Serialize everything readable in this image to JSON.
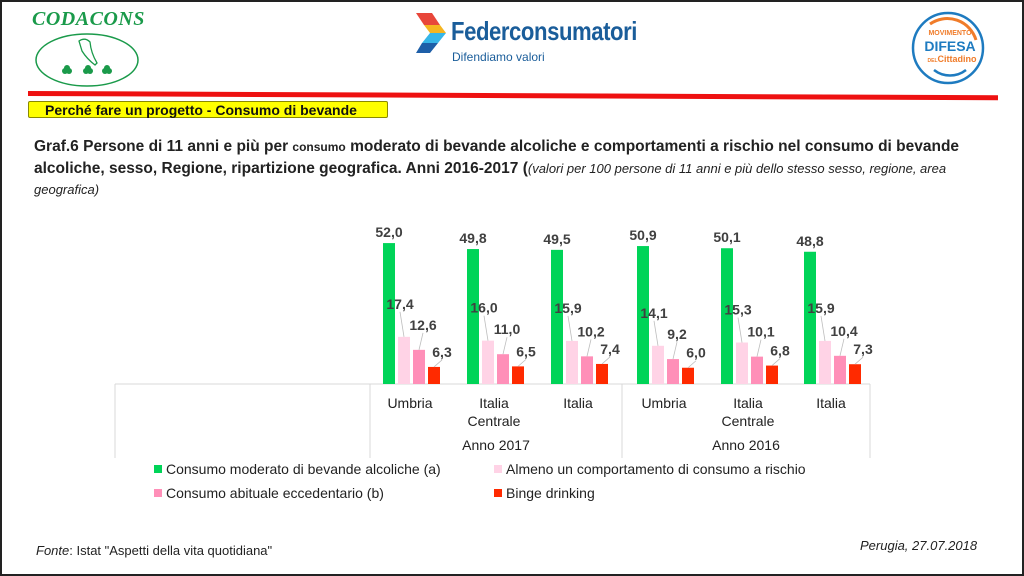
{
  "header": {
    "logo_left": {
      "name": "CODACONS"
    },
    "logo_center": {
      "name": "Federconsumatori",
      "tagline": "Difendiamo valori"
    },
    "logo_right": {
      "line1": "MOVIMENTO",
      "line2": "DIFESA",
      "line3_small": "DEL",
      "line3": "Cittadino"
    },
    "section_label": "Perché fare un progetto  - Consumo di bevande"
  },
  "title": {
    "part1": "Graf.6 Persone di 11 anni e più per ",
    "part2_small": "consumo",
    "part3": " moderato di bevande alcoliche  e comportamenti a rischio nel consumo di bevande alcoliche, sesso, Regione, ripartizione geografica. Anni 2016-2017 (",
    "part4_italic": "(valori per 100 persone di 11 anni e più dello stesso sesso, regione, area geografica)"
  },
  "chart_data": {
    "type": "bar",
    "title": "Graf.6 Persone di 11 anni e più per consumo moderato di bevande alcoliche e comportamenti a rischio nel consumo di bevande alcoliche, sesso, Regione, ripartizione geografica. Anni 2016-2017",
    "categories": [
      "Umbria",
      "Italia Centrale",
      "Italia",
      "Umbria",
      "Italia Centrale",
      "Italia"
    ],
    "category_lines": [
      [
        "Umbria"
      ],
      [
        "Italia",
        "Centrale"
      ],
      [
        "Italia"
      ],
      [
        "Umbria"
      ],
      [
        "Italia",
        "Centrale"
      ],
      [
        "Italia"
      ]
    ],
    "groups": [
      {
        "label": "Anno 2017",
        "categories": [
          0,
          1,
          2
        ]
      },
      {
        "label": "Anno 2016",
        "categories": [
          3,
          4,
          5
        ]
      }
    ],
    "series": [
      {
        "name": "Consumo moderato di bevande alcoliche (a)",
        "color": "#00d458",
        "values": [
          52.0,
          49.8,
          49.5,
          50.9,
          50.1,
          48.8
        ],
        "labels": [
          "52,0",
          "49,8",
          "49,5",
          "50,9",
          "50,1",
          "48,8"
        ]
      },
      {
        "name": "Almeno un comportamento  di consumo a rischio",
        "color": "#ffd3e6",
        "values": [
          17.4,
          16.0,
          15.9,
          14.1,
          15.3,
          15.9
        ],
        "labels": [
          "17,4",
          "16,0",
          "15,9",
          "14,1",
          "15,3",
          "15,9"
        ]
      },
      {
        "name": "Consumo abituale eccedentario (b)",
        "color": "#ff8fb8",
        "values": [
          12.6,
          11.0,
          10.2,
          9.2,
          10.1,
          10.4
        ],
        "labels": [
          "12,6",
          "11,0",
          "10,2",
          "9,2",
          "10,1",
          "10,4"
        ]
      },
      {
        "name": "Binge drinking",
        "color": "#ff2a00",
        "values": [
          6.3,
          6.5,
          7.4,
          6.0,
          6.8,
          7.3
        ],
        "labels": [
          "6,3",
          "6,5",
          "7,4",
          "6,0",
          "6,8",
          "7,3"
        ]
      }
    ],
    "xlabel": "",
    "ylabel": "",
    "ylim": [
      0,
      55
    ],
    "grid": false,
    "legend_position": "bottom"
  },
  "footer": {
    "source_label": "Fonte",
    "source_text": ": Istat \"Aspetti della vita quotidiana\"",
    "place_date": "Perugia, 27.07.2018"
  }
}
